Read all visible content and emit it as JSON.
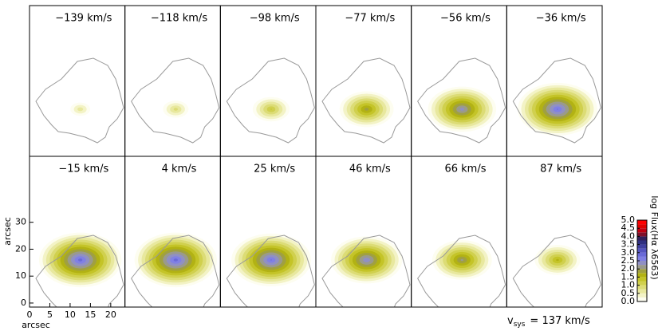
{
  "chart_data": {
    "type": "channel-map",
    "panels": [
      {
        "label": "−139 km/s",
        "peak": 0.7
      },
      {
        "label": "−118 km/s",
        "peak": 0.9
      },
      {
        "label": "−98 km/s",
        "peak": 1.3
      },
      {
        "label": "−77 km/s",
        "peak": 1.9
      },
      {
        "label": "−56 km/s",
        "peak": 2.4
      },
      {
        "label": "−36 km/s",
        "peak": 2.8
      },
      {
        "label": "−15 km/s",
        "peak": 2.9
      },
      {
        "label": "4 km/s",
        "peak": 2.9
      },
      {
        "label": "25 km/s",
        "peak": 2.8
      },
      {
        "label": "46 km/s",
        "peak": 2.5
      },
      {
        "label": "66 km/s",
        "peak": 2.1
      },
      {
        "label": "87 km/s",
        "peak": 1.6
      }
    ],
    "xlabel": "arcsec",
    "ylabel": "arcsec",
    "xlim": [
      0,
      23.5
    ],
    "ylim": [
      -1.5,
      54.5
    ],
    "xticks": [
      0,
      5,
      10,
      15,
      20
    ],
    "yticks": [
      0,
      10,
      20,
      30
    ],
    "colorbar": {
      "label": "log Flux(Hα λ6563)",
      "lim": [
        0,
        5
      ],
      "ticks": [
        {
          "value": 0,
          "label": "0.0"
        },
        {
          "value": 0.5,
          "label": "0.5"
        },
        {
          "value": 1,
          "label": "1.0"
        },
        {
          "value": 1.5,
          "label": "1.5"
        },
        {
          "value": 2,
          "label": "2.0"
        },
        {
          "value": 2.5,
          "label": "2.5"
        },
        {
          "value": 3,
          "label": "3.0"
        },
        {
          "value": 3.5,
          "label": "3.5"
        },
        {
          "value": 4,
          "label": "4.0"
        },
        {
          "value": 4.5,
          "label": "4.5"
        },
        {
          "value": 5,
          "label": "5.0"
        }
      ],
      "colors": [
        "#fdfdf0",
        "#f3f3c6",
        "#e8e89e",
        "#dcdc76",
        "#d0d04e",
        "#c4c428",
        "#b2b214",
        "#a0a040",
        "#9a9a8c",
        "#9090c4",
        "#8080e4",
        "#6a6ad8",
        "#5555c0",
        "#4040a0",
        "#303080",
        "#30205a",
        "#80102a",
        "#c00010",
        "#e00000",
        "#ff0000"
      ]
    },
    "vsys": {
      "symbol": "v",
      "subscript": "sys",
      "text": "= 137 km/s"
    }
  }
}
